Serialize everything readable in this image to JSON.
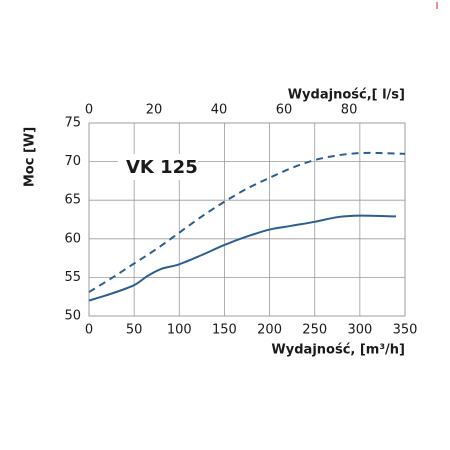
{
  "chart_data": {
    "type": "line",
    "y_label": "Moc [W]",
    "x_label": "Wydajność, [m³/h]",
    "x2_label": "Wydajność,[ l/s]",
    "annotation": "VK 125",
    "xlim": [
      0,
      350
    ],
    "xticks": [
      0,
      50,
      100,
      150,
      200,
      250,
      300,
      350
    ],
    "x2lim": [
      0,
      97.2
    ],
    "x2ticks": [
      0,
      20,
      40,
      60,
      80
    ],
    "ylim": [
      50,
      75
    ],
    "yticks": [
      50,
      55,
      60,
      65,
      70,
      75
    ],
    "grid": true,
    "series": [
      {
        "color": "#2b5f91",
        "dashed": false,
        "x": [
          0,
          25,
          50,
          65,
          80,
          100,
          125,
          150,
          175,
          200,
          225,
          250,
          275,
          300,
          340
        ],
        "values": [
          52,
          52.9,
          54.0,
          55.2,
          56.1,
          56.7,
          57.9,
          59.2,
          60.3,
          61.2,
          61.7,
          62.2,
          62.8,
          63.0,
          62.9
        ]
      },
      {
        "color": "#2b5f91",
        "dashed": true,
        "x": [
          0,
          25,
          50,
          75,
          100,
          125,
          150,
          175,
          200,
          225,
          250,
          275,
          300,
          325,
          350
        ],
        "values": [
          53.1,
          54.9,
          56.8,
          58.7,
          60.8,
          62.9,
          64.8,
          66.5,
          67.9,
          69.2,
          70.2,
          70.8,
          71.1,
          71.1,
          71.0
        ]
      }
    ]
  }
}
